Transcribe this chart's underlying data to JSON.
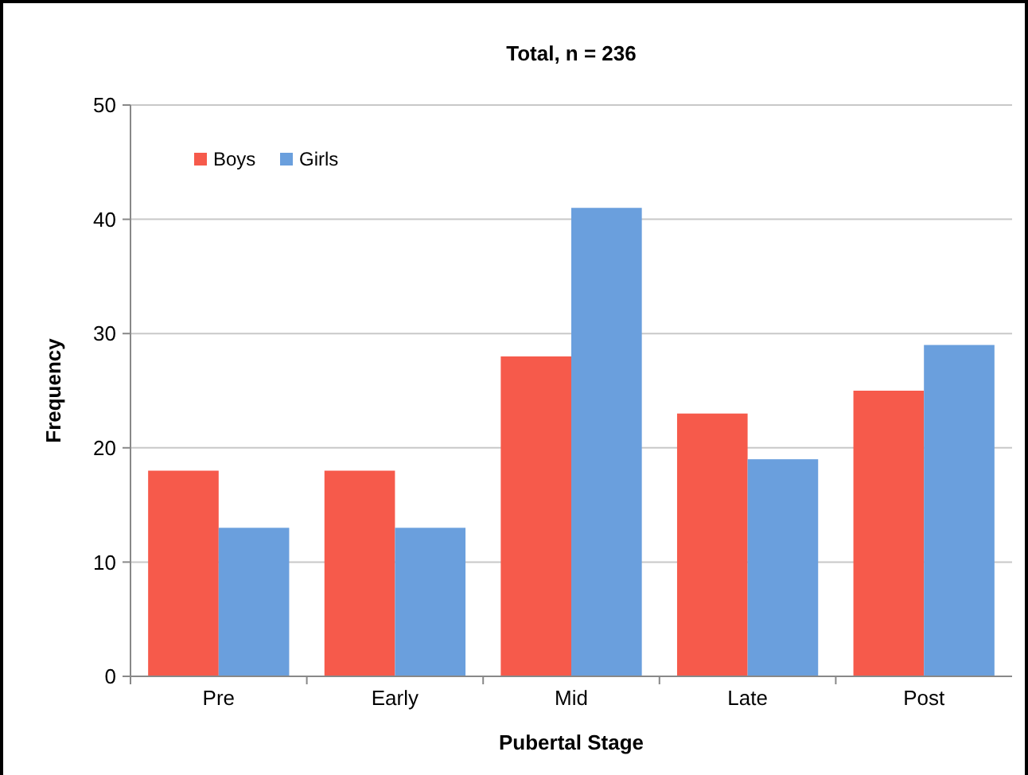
{
  "chart_data": {
    "type": "bar",
    "title": "Total, n = 236",
    "xlabel": "Pubertal Stage",
    "ylabel": "Frequency",
    "categories": [
      "Pre",
      "Early",
      "Mid",
      "Late",
      "Post"
    ],
    "series": [
      {
        "name": "Boys",
        "color": "#f65a4b",
        "values": [
          18,
          18,
          28,
          23,
          25
        ]
      },
      {
        "name": "Girls",
        "color": "#6a9fdd",
        "values": [
          13,
          13,
          41,
          19,
          29
        ]
      }
    ],
    "ylim": [
      0,
      50
    ],
    "yticks": [
      0,
      10,
      20,
      30,
      40,
      50
    ],
    "grid": "y",
    "legend": "top left"
  }
}
